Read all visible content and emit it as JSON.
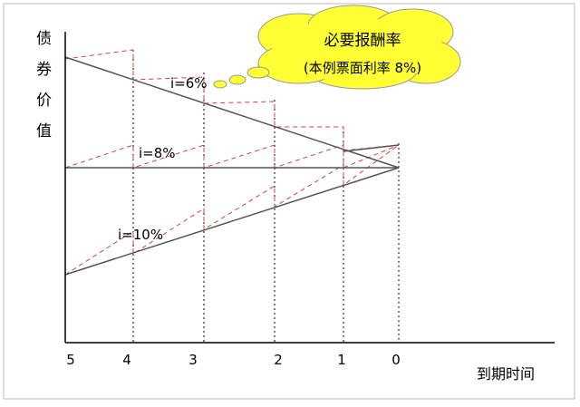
{
  "y_axis_label": "债券价值",
  "x_axis_label": "到期时间",
  "x_ticks": [
    "5",
    "4",
    "3",
    "2",
    "1",
    "0"
  ],
  "callout": {
    "line1": "必要报酬率",
    "line2": "(本例票面利率 8%)"
  },
  "line_labels": [
    "i=6%",
    "i=8%",
    "i=10%"
  ]
}
